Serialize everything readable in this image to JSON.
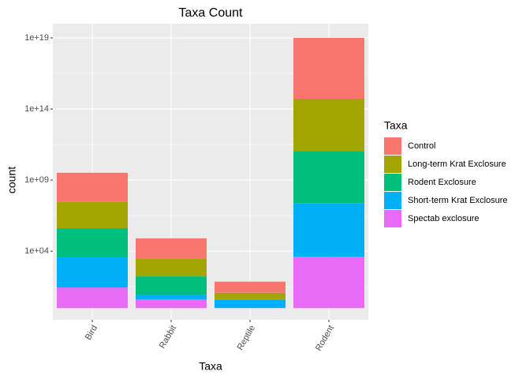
{
  "chart_data": {
    "type": "bar",
    "stacked": true,
    "log_scale": true,
    "title": "Taxa Count",
    "x_label": "Taxa",
    "y_label": "count",
    "legend_title": "Taxa",
    "legend_position": "right",
    "grid": true,
    "categories": [
      "Bird",
      "Rabbit",
      "Reptile",
      "Rodent"
    ],
    "series": [
      {
        "name": "Control",
        "color": "#F8766D",
        "values": [
          115,
          28,
          6,
          19000
        ]
      },
      {
        "name": "Long-term Krat Exclosure",
        "color": "#A3A500",
        "values": [
          68,
          17,
          3,
          4700
        ]
      },
      {
        "name": "Rodent Exclosure",
        "color": "#00BF7D",
        "values": [
          115,
          21,
          null,
          4700
        ]
      },
      {
        "name": "Short-term Krat Exclosure",
        "color": "#00B0F6",
        "values": [
          130,
          2,
          4,
          6000
        ]
      },
      {
        "name": "Spectab exclosure",
        "color": "#E76BF3",
        "values": [
          28,
          4,
          null,
          4000
        ]
      }
    ],
    "ylim": [
      0.15,
      1e+20
    ],
    "yticks": [
      {
        "value": 10000,
        "label": "1e+04"
      },
      {
        "value": 1000000000.0,
        "label": "1e+09"
      },
      {
        "value": 100000000000000.0,
        "label": "1e+14"
      },
      {
        "value": 1e+19,
        "label": "1e+19"
      }
    ]
  }
}
